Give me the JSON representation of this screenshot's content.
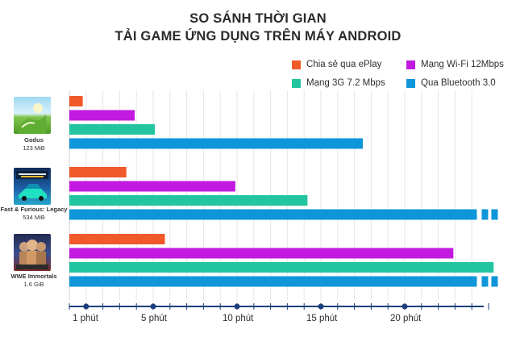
{
  "title_line1": "SO SÁNH THỜI GIAN",
  "title_line2": "TẢI GAME ỨNG DỤNG TRÊN MÁY ANDROID",
  "colors": {
    "eplay": "#f0592a",
    "wifi": "#c21ae0",
    "g3": "#22c5a0",
    "bluetooth": "#0e95da",
    "axis": "#1b3f7a"
  },
  "legend": [
    {
      "label": "Chia sẻ qua ePlay",
      "color": "#f0592a"
    },
    {
      "label": "Mạng Wi-Fi 12Mbps",
      "color": "#c21ae0"
    },
    {
      "label": "Mạng 3G 7.2 Mbps",
      "color": "#22c5a0"
    },
    {
      "label": "Qua Bluetooth 3.0",
      "color": "#0e95da"
    }
  ],
  "games": [
    {
      "name": "Godus",
      "size": "123 MiB",
      "icon": "godus-icon"
    },
    {
      "name": "Fast & Furious: Legacy",
      "size": "534 MiB",
      "icon": "fast-furious-icon"
    },
    {
      "name": "WWE Immortals",
      "size": "1.6 GiB",
      "icon": "wwe-icon"
    }
  ],
  "chart_data": {
    "type": "bar",
    "orientation": "horizontal",
    "categories": [
      "Godus",
      "Fast & Furious: Legacy",
      "WWE Immortals"
    ],
    "series": [
      {
        "name": "Chia sẻ qua ePlay",
        "values": [
          0.8,
          3.4,
          5.7
        ]
      },
      {
        "name": "Mạng Wi-Fi 12Mbps",
        "values": [
          3.9,
          9.9,
          22.9
        ]
      },
      {
        "name": "Mạng 3G 7.2 Mbps",
        "values": [
          5.1,
          14.2,
          25.3
        ]
      },
      {
        "name": "Qua Bluetooth 3.0",
        "values": [
          17.5,
          25.0,
          25.0
        ],
        "truncated": [
          false,
          true,
          true
        ]
      }
    ],
    "xlim": [
      0,
      25
    ],
    "x_ticks": [
      {
        "value": 1,
        "label": "1 phút"
      },
      {
        "value": 5,
        "label": "5 phút"
      },
      {
        "value": 10,
        "label": "10 phút"
      },
      {
        "value": 15,
        "label": "15 phút"
      },
      {
        "value": 20,
        "label": "20 phút"
      }
    ],
    "legend_position": "top-right",
    "grid": true
  }
}
